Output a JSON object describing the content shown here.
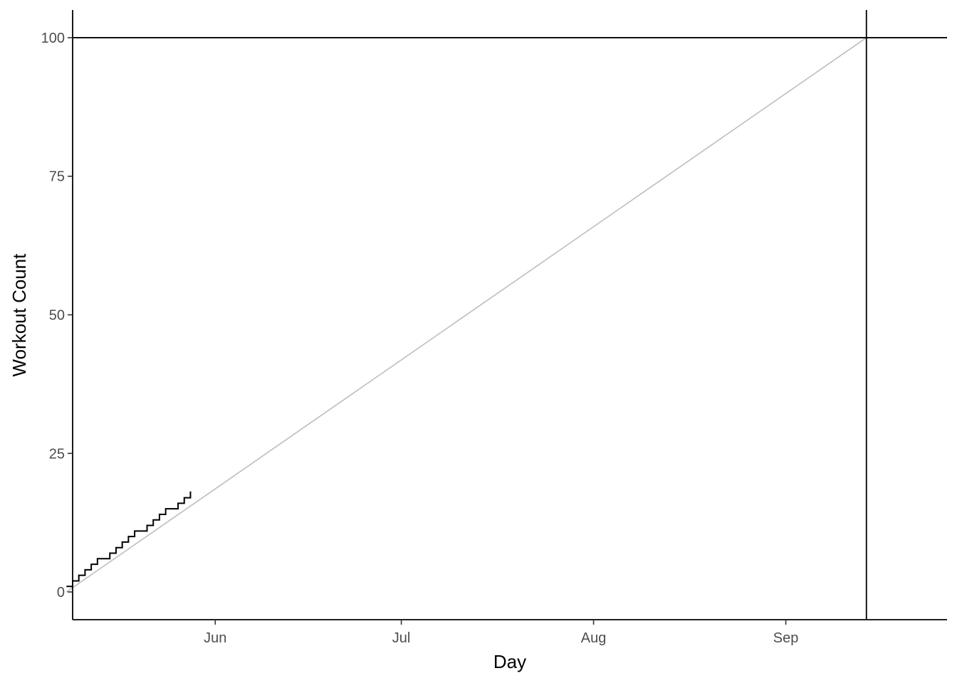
{
  "chart_data": {
    "type": "line",
    "title": "",
    "xlabel": "Day",
    "ylabel": "Workout Count",
    "x_axis_type": "date",
    "xlim": [
      "2023-05-09",
      "2023-09-27"
    ],
    "ylim": [
      -5,
      105
    ],
    "y_ticks": [
      0,
      25,
      50,
      75,
      100
    ],
    "x_ticks": [
      {
        "date": "2023-06-01",
        "label": "Jun"
      },
      {
        "date": "2023-07-01",
        "label": "Jul"
      },
      {
        "date": "2023-08-01",
        "label": "Aug"
      },
      {
        "date": "2023-09-01",
        "label": "Sep"
      }
    ],
    "grid": false,
    "legend": "none",
    "reference_lines": {
      "horizontal_y": 100,
      "vertical_x": "2023-09-14"
    },
    "series": [
      {
        "style": "step",
        "color": "#000000",
        "points": [
          {
            "x": "2023-05-08",
            "y": 1
          },
          {
            "x": "2023-05-09",
            "y": 2
          },
          {
            "x": "2023-05-10",
            "y": 3
          },
          {
            "x": "2023-05-11",
            "y": 4
          },
          {
            "x": "2023-05-12",
            "y": 5
          },
          {
            "x": "2023-05-13",
            "y": 6
          },
          {
            "x": "2023-05-15",
            "y": 7
          },
          {
            "x": "2023-05-16",
            "y": 8
          },
          {
            "x": "2023-05-17",
            "y": 9
          },
          {
            "x": "2023-05-18",
            "y": 10
          },
          {
            "x": "2023-05-19",
            "y": 11
          },
          {
            "x": "2023-05-21",
            "y": 12
          },
          {
            "x": "2023-05-22",
            "y": 13
          },
          {
            "x": "2023-05-23",
            "y": 14
          },
          {
            "x": "2023-05-24",
            "y": 15
          },
          {
            "x": "2023-05-26",
            "y": 16
          },
          {
            "x": "2023-05-27",
            "y": 17
          },
          {
            "x": "2023-05-28",
            "y": 18
          }
        ]
      },
      {
        "style": "line",
        "color": "#bebebe",
        "points": [
          {
            "x": "2023-05-08",
            "y": 0
          },
          {
            "x": "2023-09-14",
            "y": 100
          }
        ]
      }
    ]
  }
}
